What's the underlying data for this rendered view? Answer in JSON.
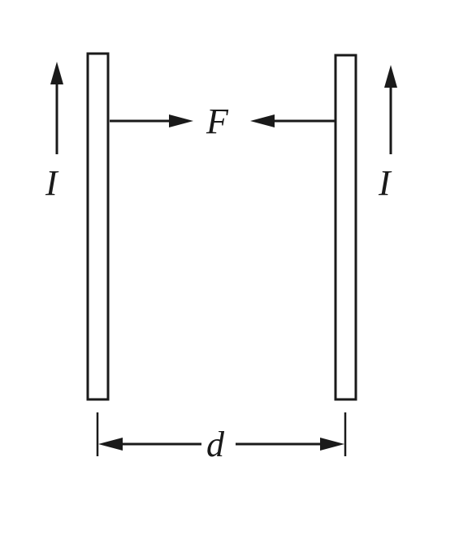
{
  "labels": {
    "force": "F",
    "current_left": "I",
    "current_right": "I",
    "distance": "d"
  },
  "colors": {
    "ink": "#1a1a1a",
    "background": "#ffffff"
  }
}
